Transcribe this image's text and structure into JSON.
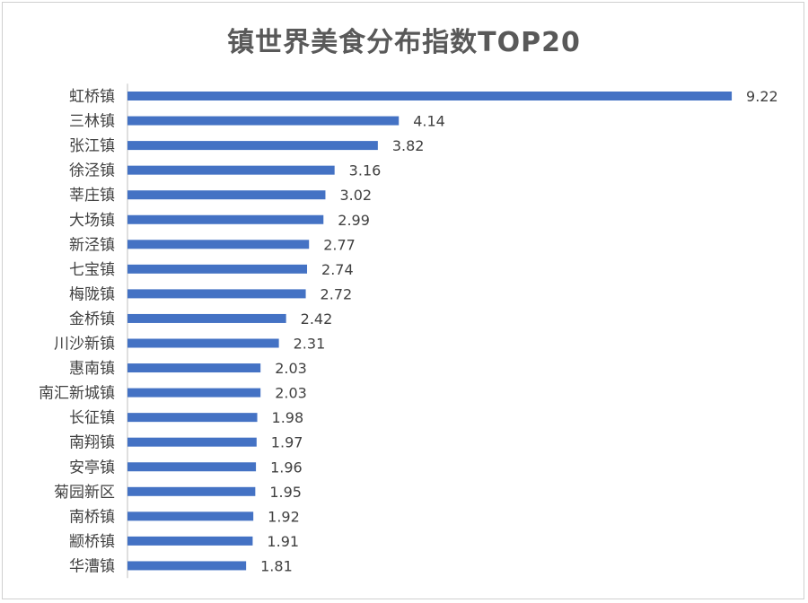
{
  "chart_data": {
    "type": "bar",
    "orientation": "horizontal",
    "title": "镇世界美食分布指数TOP20",
    "categories": [
      "虹桥镇",
      "三林镇",
      "张江镇",
      "徐泾镇",
      "莘庄镇",
      "大场镇",
      "新泾镇",
      "七宝镇",
      "梅陇镇",
      "金桥镇",
      "川沙新镇",
      "惠南镇",
      "南汇新城镇",
      "长征镇",
      "南翔镇",
      "安亭镇",
      "菊园新区",
      "南桥镇",
      "颛桥镇",
      "华漕镇"
    ],
    "values": [
      9.22,
      4.14,
      3.82,
      3.16,
      3.02,
      2.99,
      2.77,
      2.74,
      2.72,
      2.42,
      2.31,
      2.03,
      2.03,
      1.98,
      1.97,
      1.96,
      1.95,
      1.92,
      1.91,
      1.81
    ],
    "value_labels": [
      "9.22",
      "4.14",
      "3.82",
      "3.16",
      "3.02",
      "2.99",
      "2.77",
      "2.74",
      "2.72",
      "2.42",
      "2.31",
      "2.03",
      "2.03",
      "1.98",
      "1.97",
      "1.96",
      "1.95",
      "1.92",
      "1.91",
      "1.81"
    ],
    "xlim": [
      0,
      10
    ],
    "grid": false,
    "legend": "none",
    "colors": {
      "bar": "#4472C4",
      "axis": "#BFBFBF",
      "text": "#404040",
      "title": "#595959"
    }
  }
}
